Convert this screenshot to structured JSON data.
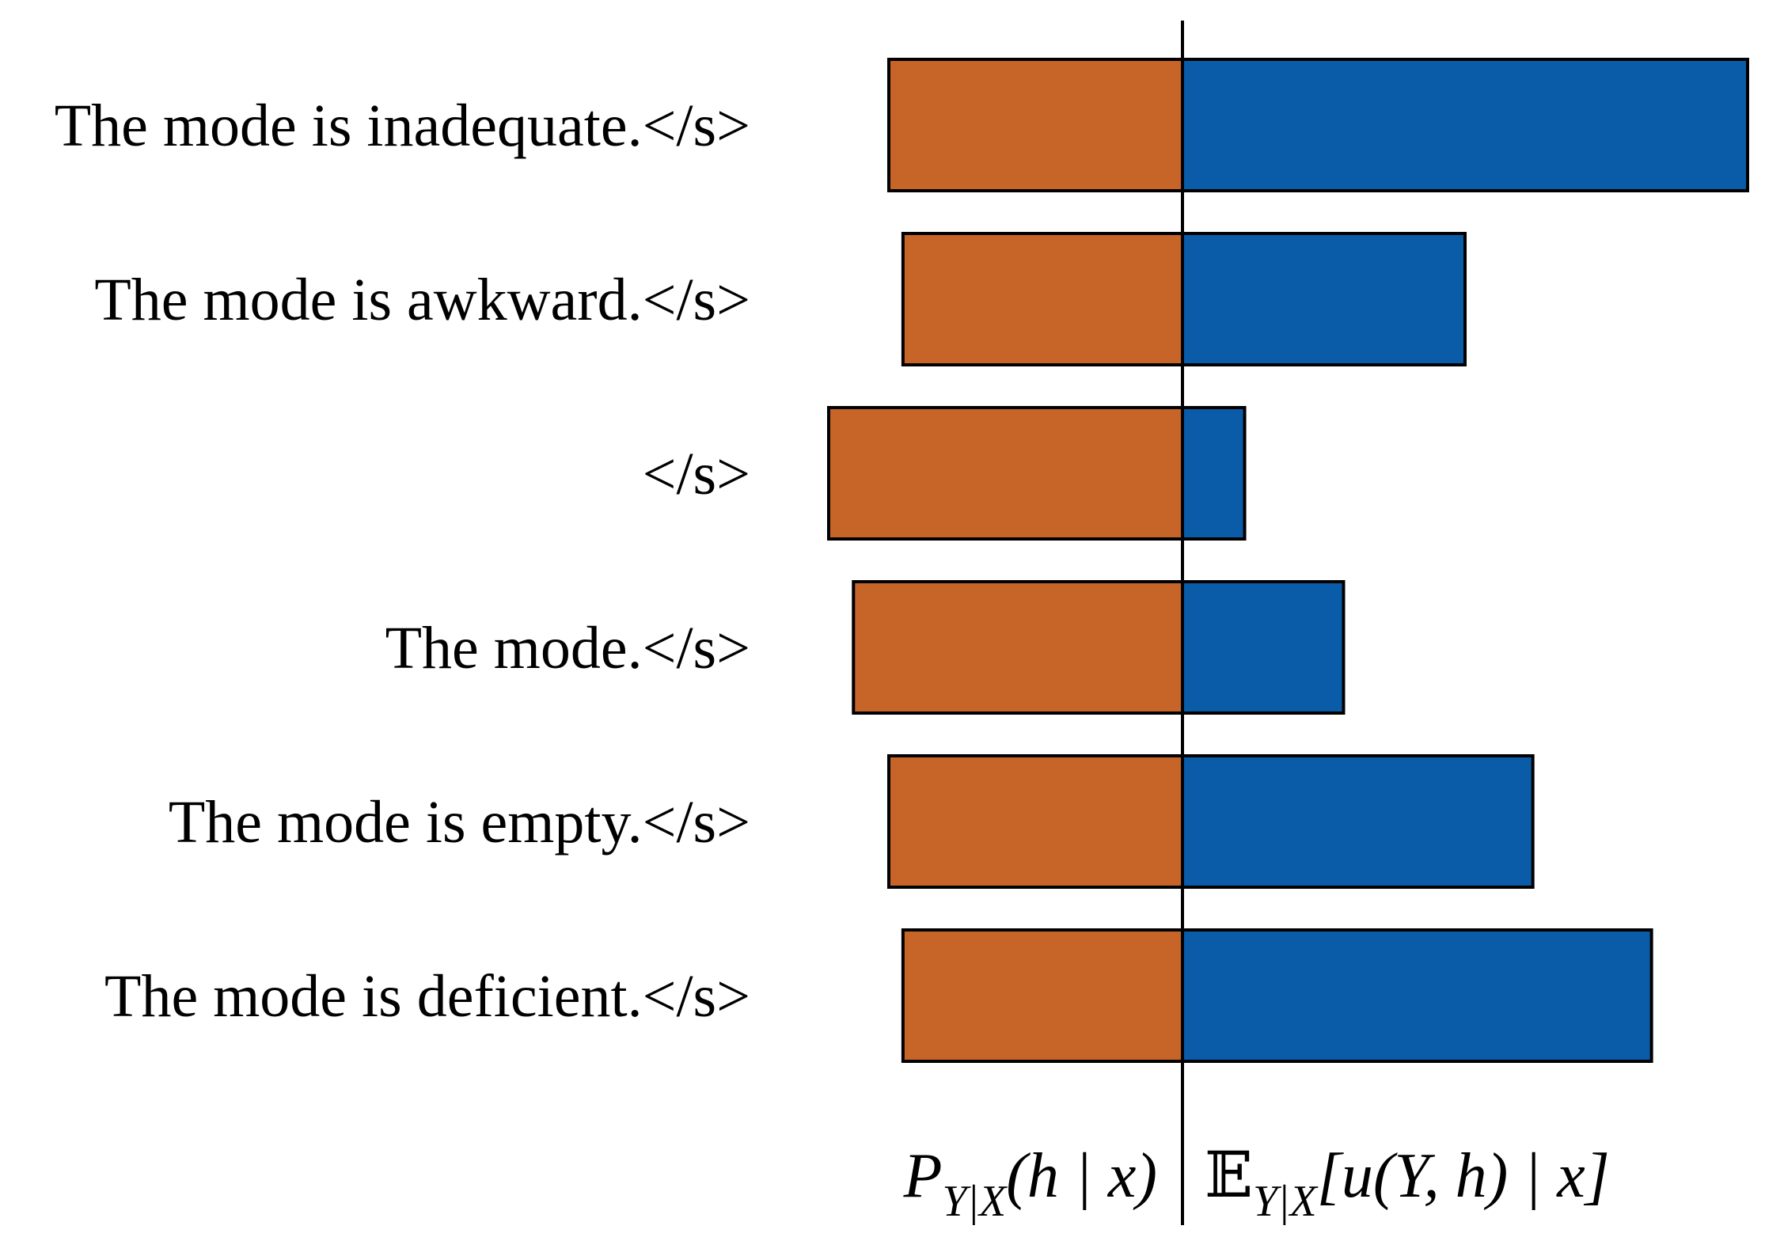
{
  "chart_data": {
    "type": "bar",
    "orientation": "horizontal-diverging",
    "categories": [
      "The mode is inadequate.</s>",
      "The mode is awkward.</s>",
      "</s>",
      "The mode.</s>",
      "The mode is empty.</s>",
      "The mode is deficient.</s>"
    ],
    "series": [
      {
        "values": [
          0.83,
          0.79,
          1.0,
          0.93,
          0.83,
          0.79
        ],
        "color": "#C76428",
        "direction": "left"
      },
      {
        "values": [
          1.0,
          0.5,
          0.11,
          0.285,
          0.62,
          0.83
        ],
        "color": "#0A5CA8",
        "direction": "right"
      }
    ],
    "grid": false,
    "legend": "none",
    "left_axis_label": {
      "main": "P",
      "sub": "Y|X",
      "args": "(h | x)"
    },
    "right_axis_label": {
      "main": "𝔼",
      "sub": "Y|X",
      "args": "[u(Y, h) | x]"
    }
  }
}
